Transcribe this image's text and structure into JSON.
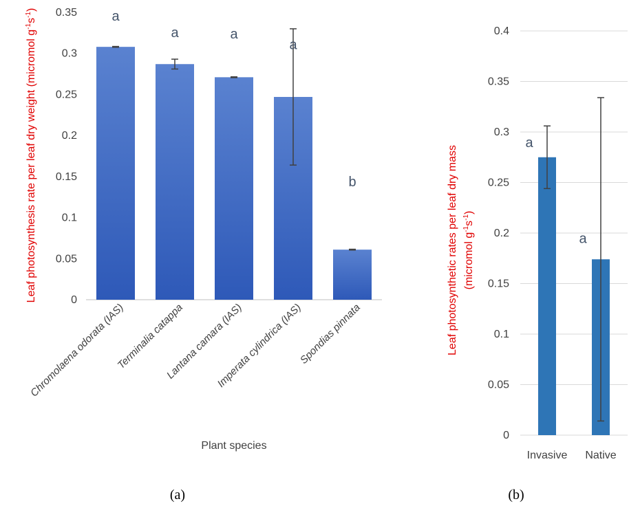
{
  "colors": {
    "bar_a_top": "#5a82d0",
    "bar_a_bottom": "#2e59b8",
    "bar_b": "#2e75b6",
    "grid": "#d9d9d9",
    "axis": "#bfbfbf",
    "ylabel": "#e00000",
    "significance": "#44546a",
    "error_bar": "#404040"
  },
  "chart_data": [
    {
      "type": "bar",
      "panel_label": "(a)",
      "title": "",
      "xlabel": "Plant species",
      "ylabel_main": "Leaf photosynthesis rate per leaf dry weight (micromol g",
      "ylabel_sup1": "-1",
      "ylabel_mid": "s",
      "ylabel_sup2": "-1",
      "ylabel_end": ")",
      "ylim": [
        0,
        0.35
      ],
      "yticks": [
        "0",
        "0.05",
        "0.1",
        "0.15",
        "0.2",
        "0.25",
        "0.3",
        "0.35"
      ],
      "grid": "none",
      "categories": [
        "Chromolaena odorata (IAS)",
        "Terminalia catappa",
        "Lantana camara (IAS)",
        "Imperata cylindrica (IAS)",
        "Spondias pinnata"
      ],
      "values": [
        0.308,
        0.287,
        0.271,
        0.247,
        0.061
      ],
      "errors": [
        0.0005,
        0.006,
        0.0005,
        0.083,
        0.0005
      ],
      "significance": [
        "a",
        "a",
        "a",
        "a",
        "b"
      ],
      "significance_y": [
        0.34,
        0.32,
        0.318,
        0.305,
        0.138
      ]
    },
    {
      "type": "bar",
      "panel_label": "(b)",
      "title": "",
      "xlabel": "",
      "ylabel_line1": "Leaf photosynthetic rates per leaf dry mass",
      "ylabel_line2_main": "(micromol g",
      "ylabel_sup1": "-1",
      "ylabel_mid": "s",
      "ylabel_sup2": "-1",
      "ylabel_end": ")",
      "ylim": [
        0,
        0.4
      ],
      "yticks": [
        "0",
        "0.05",
        "0.1",
        "0.15",
        "0.2",
        "0.25",
        "0.3",
        "0.35",
        "0.4"
      ],
      "grid": "horizontal",
      "categories": [
        "Invasive",
        "Native"
      ],
      "values": [
        0.275,
        0.174
      ],
      "errors": [
        0.031,
        0.16
      ],
      "significance": [
        "a",
        "a"
      ],
      "significance_y": [
        0.285,
        0.19
      ]
    }
  ]
}
